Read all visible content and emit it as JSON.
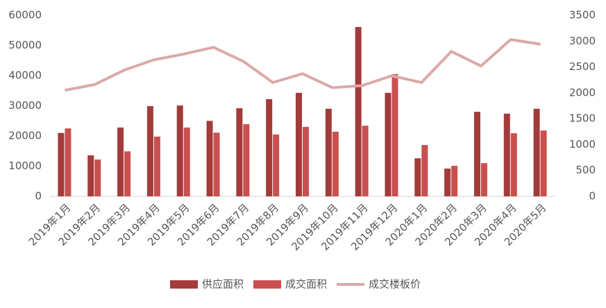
{
  "chart_data": {
    "type": "bar-line",
    "categories": [
      "2019年1月",
      "2019年2月",
      "2019年3月",
      "2019年4月",
      "2019年5月",
      "2019年6月",
      "2019年7月",
      "2019年8月",
      "2019年9月",
      "2019年10月",
      "2019年11月",
      "2019年12月",
      "2020年1月",
      "2020年2月",
      "2020年3月",
      "2020年4月",
      "2020年5月"
    ],
    "series": [
      {
        "name": "供应面积",
        "type": "bar",
        "color": "#a33b3b",
        "values": [
          21000,
          13600,
          22800,
          29900,
          30100,
          25000,
          29200,
          32200,
          34300,
          29000,
          56100,
          34300,
          12600,
          9200,
          28000,
          27400,
          29000
        ]
      },
      {
        "name": "成交面积",
        "type": "bar",
        "color": "#c9504f",
        "values": [
          22500,
          12200,
          14900,
          19800,
          22800,
          21100,
          23900,
          20500,
          23000,
          21400,
          23400,
          40500,
          17000,
          10100,
          11000,
          20900,
          21800
        ]
      },
      {
        "name": "成交楼板价",
        "type": "line",
        "axis": "y2",
        "color": "#dba9a8",
        "values": [
          2050,
          2160,
          2440,
          2640,
          2750,
          2880,
          2610,
          2200,
          2370,
          2100,
          2140,
          2330,
          2200,
          2800,
          2520,
          3030,
          2940
        ]
      }
    ],
    "ylim": [
      0,
      60000
    ],
    "yticks": [
      0,
      10000,
      20000,
      30000,
      40000,
      50000,
      60000
    ],
    "y2lim": [
      0,
      3500
    ],
    "y2ticks": [
      0,
      500,
      1000,
      1500,
      2000,
      2500,
      3000,
      3500
    ],
    "legend": "bottom"
  }
}
